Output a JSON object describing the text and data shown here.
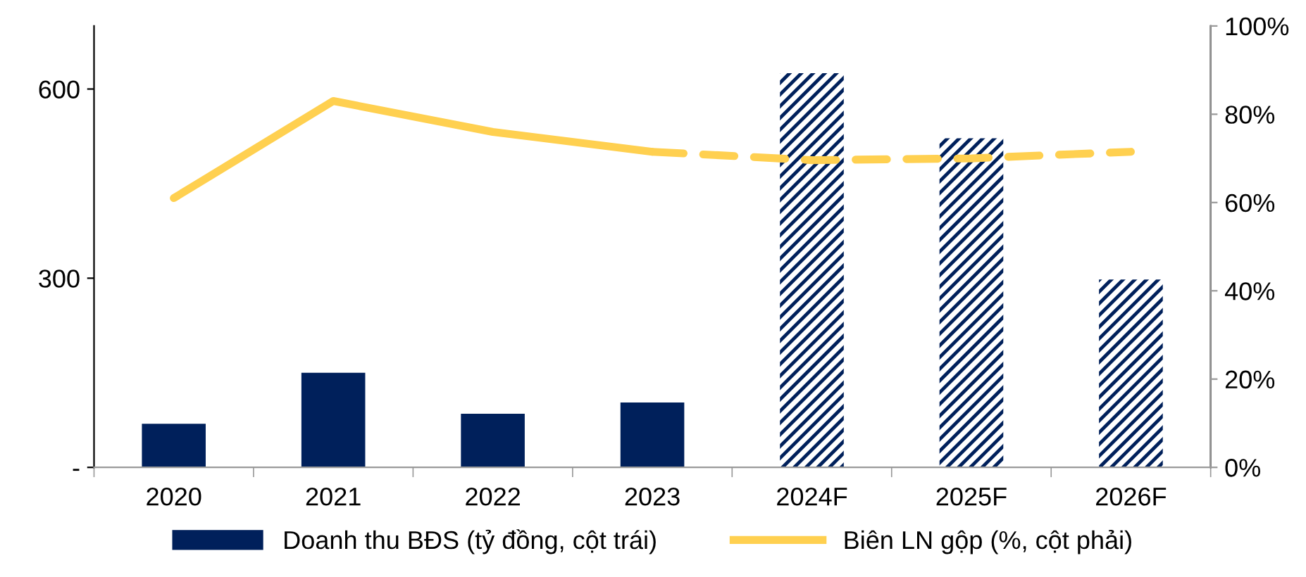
{
  "chart_data": {
    "type": "bar",
    "categories": [
      "2020",
      "2021",
      "2022",
      "2023",
      "2024F",
      "2025F",
      "2026F"
    ],
    "series": [
      {
        "name": "Doanh thu BĐS (tỷ đồng, cột trái)",
        "color": "#00205b",
        "values": [
          69,
          150,
          85,
          103,
          null,
          null,
          null
        ]
      },
      {
        "color": "#00205b",
        "values": [
          null,
          null,
          null,
          null,
          625,
          522,
          298
        ]
      },
      {
        "name": "Biên LN gộp (%, cột phải)",
        "type": "line",
        "axis": "y2",
        "color": "#ffd050",
        "line_style": "solid",
        "values": [
          61,
          83,
          76,
          71.5,
          null,
          null,
          null
        ]
      },
      {
        "type": "line",
        "axis": "y2",
        "color": "#ffd050",
        "line_style": "dashed",
        "values": [
          null,
          null,
          null,
          71.5,
          69.6,
          70,
          71.5
        ]
      }
    ],
    "ylim": [
      0,
      700
    ],
    "yticks": [
      {
        "value": 0,
        "label": "-"
      },
      300,
      600
    ],
    "y2lim": [
      0,
      100
    ],
    "y2ticks": [
      {
        "value": 0,
        "label": "0%"
      },
      {
        "value": 20,
        "label": "20%"
      },
      {
        "value": 40,
        "label": "40%"
      },
      {
        "value": 60,
        "label": "60%"
      },
      {
        "value": 80,
        "label": "80%"
      },
      {
        "value": 100,
        "label": "100%"
      }
    ],
    "grid": false,
    "legend": "bottom"
  }
}
